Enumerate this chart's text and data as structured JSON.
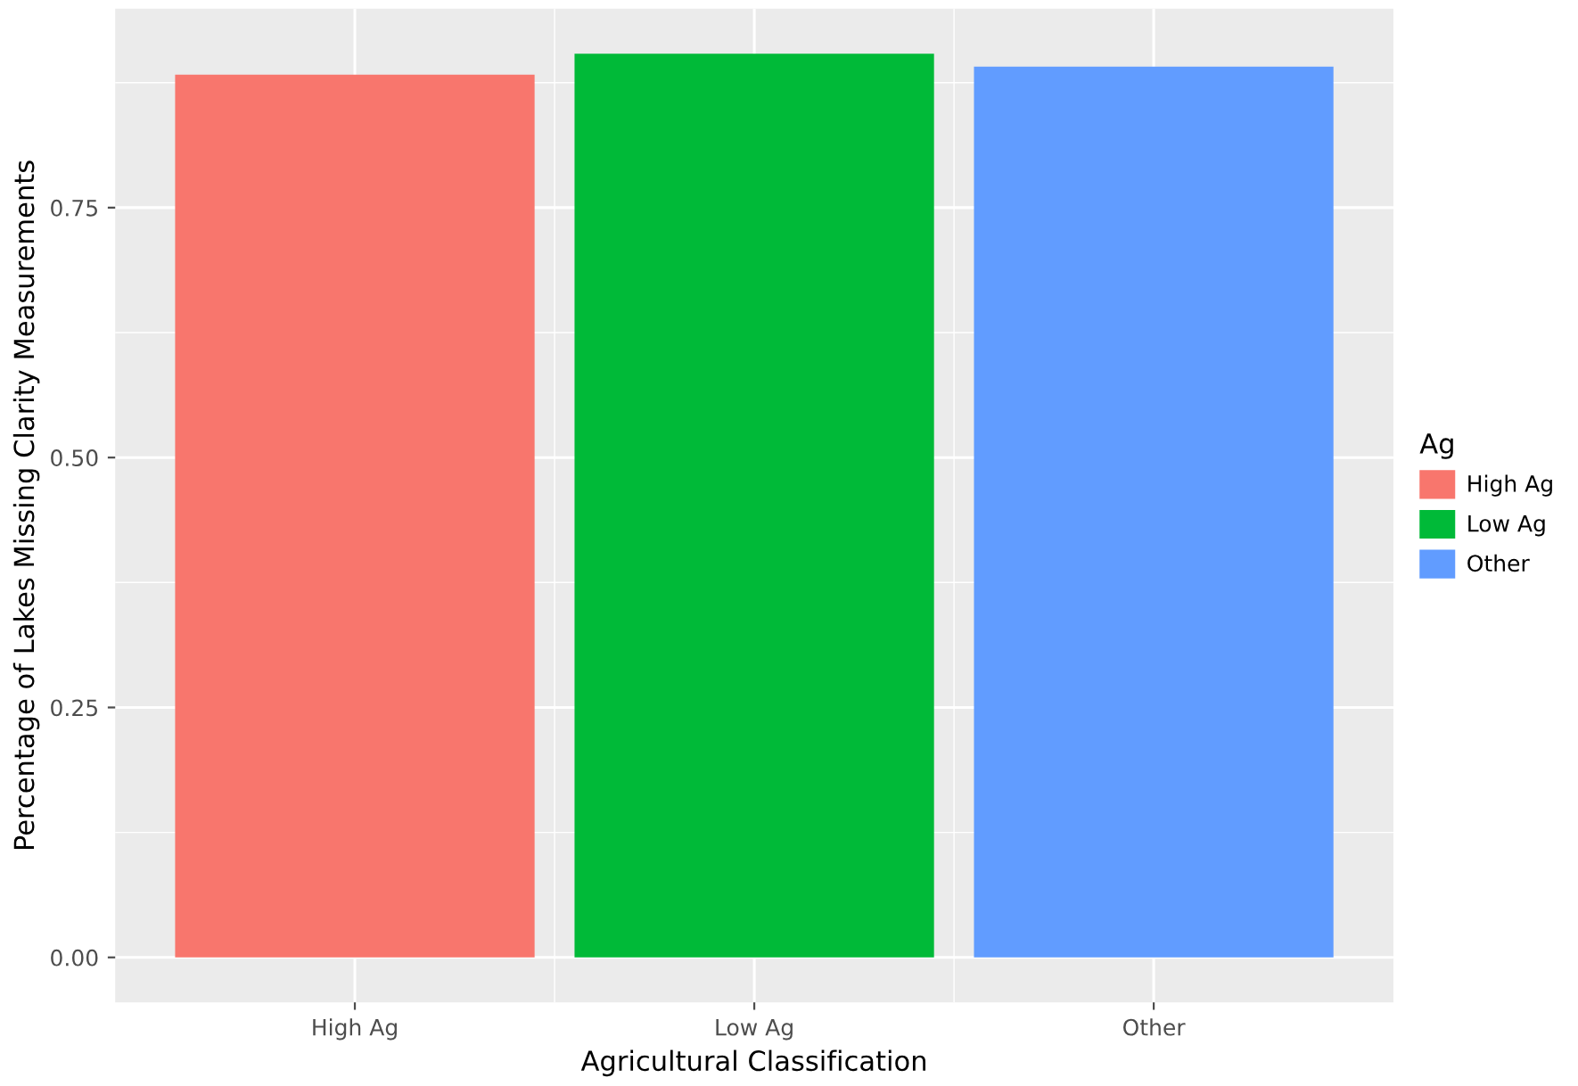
{
  "chart_data": {
    "type": "bar",
    "xlabel": "Agricultural Classification",
    "ylabel": "Percentage of Lakes Missing Clarity Measurements",
    "legend_title": "Ag",
    "legend": "right",
    "categories": [
      "High Ag",
      "Low Ag",
      "Other"
    ],
    "series": [
      {
        "name": "High Ag",
        "color": "#f8766d",
        "values": [
          0.883,
          null,
          null
        ]
      },
      {
        "name": "Low Ag",
        "color": "#00ba38",
        "values": [
          null,
          0.904,
          null
        ]
      },
      {
        "name": "Other",
        "color": "#619cff",
        "values": [
          null,
          null,
          0.891
        ]
      }
    ],
    "ylim": [
      -0.045,
      0.949
    ],
    "yticks": [
      {
        "value": 0,
        "label": "0.00"
      },
      {
        "value": 0.25,
        "label": "0.25"
      },
      {
        "value": 0.5,
        "label": "0.50"
      },
      {
        "value": 0.75,
        "label": "0.75"
      }
    ],
    "grid": true
  }
}
